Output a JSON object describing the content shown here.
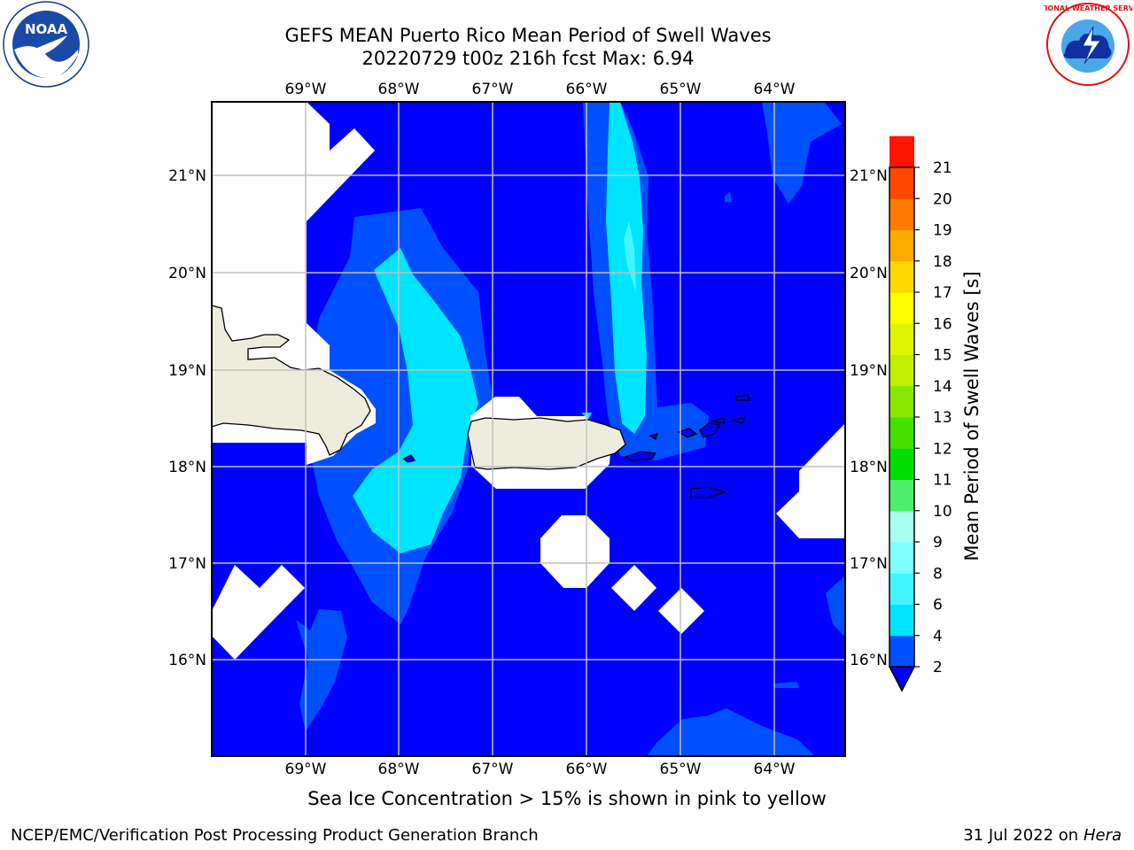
{
  "title": {
    "line1": "GEFS MEAN Puerto Rico Mean Period of Swell Waves",
    "line2": "20220729 t00z 216h fcst   Max: 6.94"
  },
  "map": {
    "lon_labels": [
      "69°W",
      "68°W",
      "67°W",
      "66°W",
      "65°W",
      "64°W"
    ],
    "lat_labels": [
      "21°N",
      "20°N",
      "19°N",
      "18°N",
      "17°N",
      "16°N"
    ]
  },
  "colorbar": {
    "label": "Mean Period of Swell Waves [s]",
    "ticks": [
      "2",
      "4",
      "6",
      "8",
      "9",
      "10",
      "11",
      "12",
      "13",
      "14",
      "15",
      "16",
      "17",
      "18",
      "19",
      "20",
      "21"
    ],
    "colors": [
      "#0050ff",
      "#00e5ff",
      "#40f5ff",
      "#80ffff",
      "#a8fff0",
      "#4cee6a",
      "#00dd00",
      "#44e000",
      "#88e600",
      "#bff000",
      "#ddf500",
      "#ffff00",
      "#ffd800",
      "#ffaa00",
      "#ff7a00",
      "#ff4800",
      "#ff1500"
    ],
    "under_color": "#0000ff"
  },
  "colors": {
    "ocean": "#0000ff",
    "period_2_4": "#0050ff",
    "period_4_6": "#00e5ff",
    "period_6_8": "#40f5ff",
    "land": "#eeeddd",
    "no_data": "#ffffff",
    "grid": "#c0c0c0"
  },
  "footer": {
    "note": "Sea Ice Concentration > 15% is shown in pink to yellow",
    "branch": "NCEP/EMC/Verification Post Processing Product Generation Branch",
    "date": "31 Jul 2022 on",
    "machine": "Hera"
  },
  "logos": {
    "noaa_text": "NOAA",
    "nws_text": "NATIONAL WEATHER SERVICE"
  }
}
